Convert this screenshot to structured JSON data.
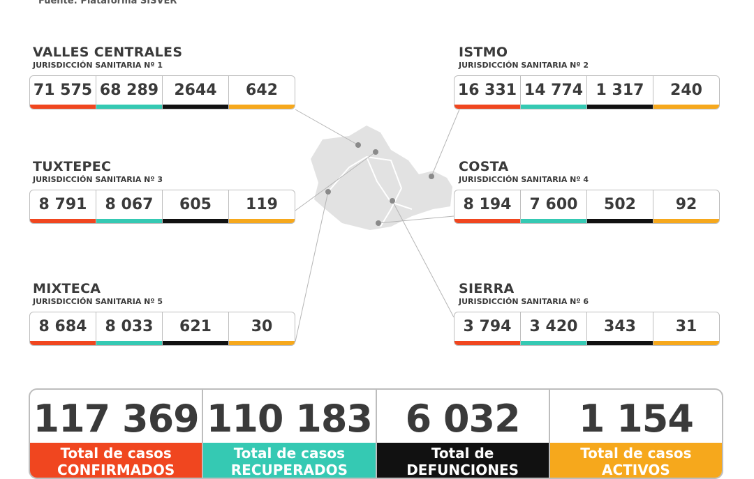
{
  "source": "Fuente: Plataforma SISVER",
  "regions": [
    {
      "name": "VALLES CENTRALES",
      "jurisdiction": "JURISDICCIÓN SANITARIA Nº 1",
      "values": [
        "71 575",
        "68 289",
        "2644",
        "642"
      ]
    },
    {
      "name": "ISTMO",
      "jurisdiction": "JURISDICCIÓN SANITARIA Nº 2",
      "values": [
        "16 331",
        "14 774",
        "1 317",
        "240"
      ]
    },
    {
      "name": "TUXTEPEC",
      "jurisdiction": "JURISDICCIÓN SANITARIA Nº 3",
      "values": [
        "8 791",
        "8 067",
        "605",
        "119"
      ]
    },
    {
      "name": "COSTA",
      "jurisdiction": "JURISDICCIÓN SANITARIA Nº 4",
      "values": [
        "8 194",
        "7 600",
        "502",
        "92"
      ]
    },
    {
      "name": "MIXTECA",
      "jurisdiction": "JURISDICCIÓN SANITARIA Nº 5",
      "values": [
        "8 684",
        "8 033",
        "621",
        "30"
      ]
    },
    {
      "name": "SIERRA",
      "jurisdiction": "JURISDICCIÓN SANITARIA Nº 6",
      "values": [
        "3 794",
        "3 420",
        "343",
        "31"
      ]
    }
  ],
  "totals": [
    {
      "value": "117 369",
      "label": "Total de casos",
      "status": "CONFIRMADOS"
    },
    {
      "value": "110 183",
      "label": "Total de casos",
      "status": "RECUPERADOS"
    },
    {
      "value": "6 032",
      "label": "Total de",
      "status": "DEFUNCIONES"
    },
    {
      "value": "1 154",
      "label": "Total de casos",
      "status": "ACTIVOS"
    }
  ]
}
